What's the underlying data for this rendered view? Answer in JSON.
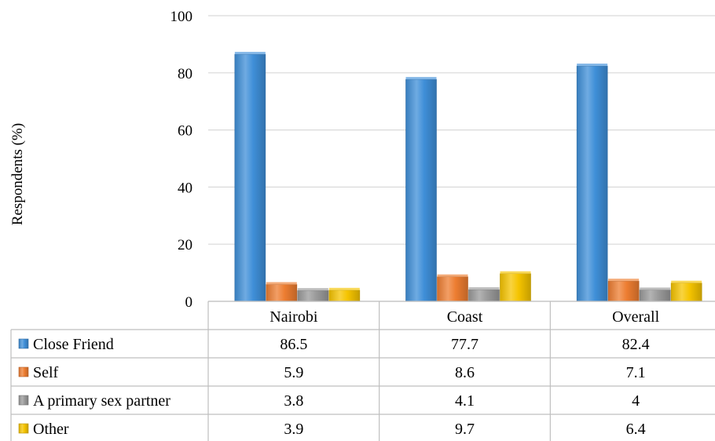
{
  "chart_data": {
    "type": "bar",
    "title": "",
    "xlabel": "",
    "ylabel": "Respondents (%)",
    "ylim": [
      0,
      100
    ],
    "yticks": [
      0,
      20,
      40,
      60,
      80,
      100
    ],
    "grid": true,
    "legend": "data-table",
    "categories": [
      "Nairobi",
      "Coast",
      "Overall"
    ],
    "series": [
      {
        "name": "Close Friend",
        "color": "#3f8fd8",
        "values": [
          86.5,
          77.7,
          82.4
        ],
        "labels": [
          "86.5",
          "77.7",
          "82.4"
        ]
      },
      {
        "name": "Self",
        "color": "#ed7d31",
        "values": [
          5.9,
          8.6,
          7.1
        ],
        "labels": [
          "5.9",
          "8.6",
          "7.1"
        ]
      },
      {
        "name": "A primary sex partner",
        "color": "#9a9a9a",
        "values": [
          3.8,
          4.1,
          4
        ],
        "labels": [
          "3.8",
          "4.1",
          "4"
        ]
      },
      {
        "name": "Other",
        "color": "#f5c400",
        "values": [
          3.9,
          9.7,
          6.4
        ],
        "labels": [
          "3.9",
          "9.7",
          "6.4"
        ]
      }
    ]
  }
}
